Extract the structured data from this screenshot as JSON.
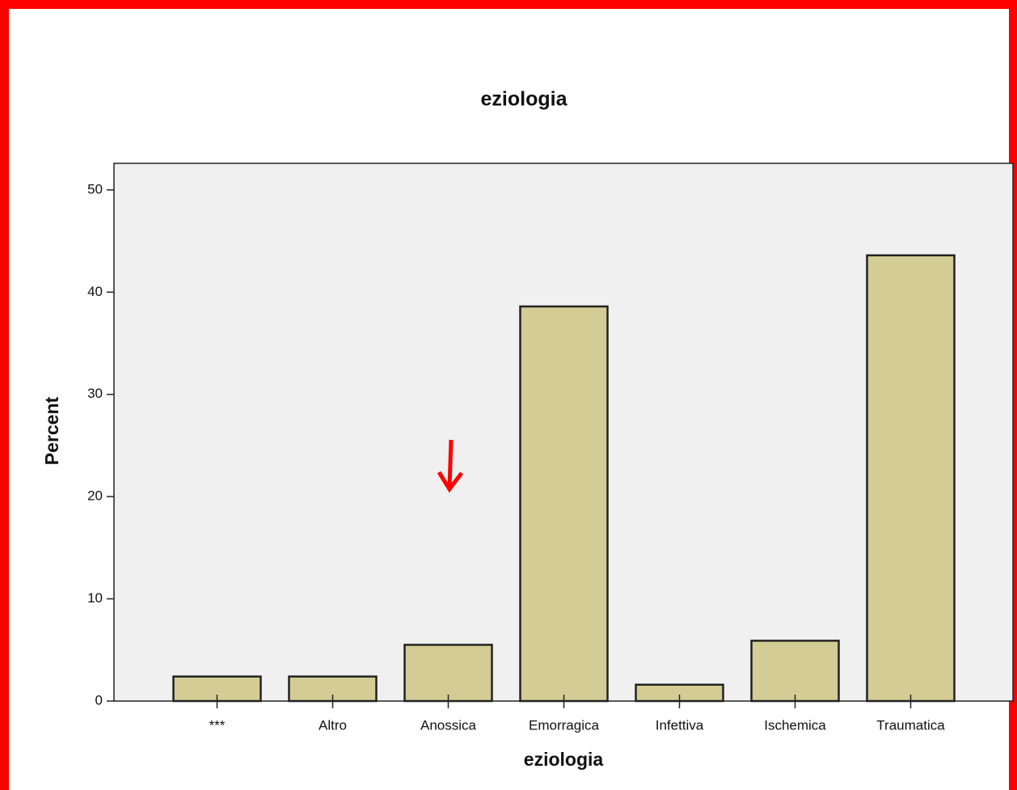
{
  "chart_data": {
    "type": "bar",
    "title": "eziologia",
    "x_label": "eziologia",
    "y_label": "Percent",
    "categories": [
      "***",
      "Altro",
      "Anossica",
      "Emorragica",
      "Infettiva",
      "Ischemica",
      "Traumatica"
    ],
    "values": [
      2.4,
      2.4,
      5.5,
      38.6,
      1.6,
      5.9,
      43.6
    ],
    "color": "#d3cd95",
    "ylim": [
      0,
      52.6
    ],
    "yticks": [
      0,
      10,
      20,
      30,
      40,
      50
    ],
    "grid": false
  }
}
